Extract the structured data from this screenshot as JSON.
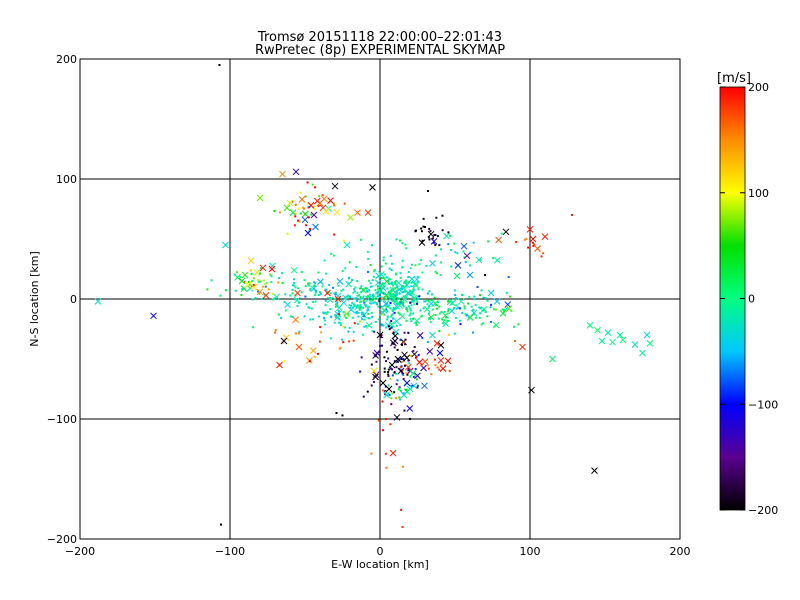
{
  "chart_data": {
    "type": "scatter",
    "title": "Tromsø 20151118 22:00:00–22:01:43",
    "subtitle": "RwPretec (8p) EXPERIMENTAL SKYMAP",
    "xlabel": "E-W location [km]",
    "ylabel": "N-S location [km]",
    "xlim": [
      -200,
      200
    ],
    "ylim": [
      -200,
      200
    ],
    "xticks": [
      -200,
      -100,
      0,
      100,
      200
    ],
    "yticks": [
      -200,
      -100,
      0,
      100,
      200
    ],
    "grid": true,
    "colorbar": {
      "label": "[m/s]",
      "range": [
        -200,
        200
      ],
      "ticks": [
        -200,
        -100,
        0,
        100,
        200
      ],
      "colormap": [
        "#000000",
        "#5a0090",
        "#0000ff",
        "#00c8ff",
        "#00ff80",
        "#00e000",
        "#ffff00",
        "#ff8c00",
        "#ff0000"
      ]
    },
    "marker_types": [
      "cross",
      "dot"
    ],
    "points": [
      {
        "x": -188,
        "y": -2,
        "v": -30,
        "m": "cross"
      },
      {
        "x": -151,
        "y": -14,
        "v": -100,
        "m": "cross"
      },
      {
        "x": -107,
        "y": 195,
        "v": -200,
        "m": "dot"
      },
      {
        "x": -106,
        "y": -188,
        "v": -200,
        "m": "dot"
      },
      {
        "x": -103,
        "y": 45,
        "v": -30,
        "m": "cross"
      },
      {
        "x": -95,
        "y": 18,
        "v": 20,
        "m": "cross"
      },
      {
        "x": -92,
        "y": 15,
        "v": 40,
        "m": "cross"
      },
      {
        "x": -90,
        "y": 20,
        "v": 60,
        "m": "cross"
      },
      {
        "x": -88,
        "y": 12,
        "v": 100,
        "m": "cross"
      },
      {
        "x": -86,
        "y": 32,
        "v": 120,
        "m": "cross"
      },
      {
        "x": -84,
        "y": 10,
        "v": 110,
        "m": "cross"
      },
      {
        "x": -82,
        "y": 22,
        "v": 90,
        "m": "cross"
      },
      {
        "x": -80,
        "y": 6,
        "v": 150,
        "m": "cross"
      },
      {
        "x": -78,
        "y": 26,
        "v": 190,
        "m": "cross"
      },
      {
        "x": -76,
        "y": 3,
        "v": 180,
        "m": "cross"
      },
      {
        "x": -72,
        "y": 25,
        "v": 200,
        "m": "cross"
      },
      {
        "x": -70,
        "y": -28,
        "v": 160,
        "m": "dot"
      },
      {
        "x": -67,
        "y": -55,
        "v": 190,
        "m": "cross"
      },
      {
        "x": -65,
        "y": 104,
        "v": 150,
        "m": "cross"
      },
      {
        "x": -64,
        "y": -35,
        "v": -190,
        "m": "cross"
      },
      {
        "x": -62,
        "y": 76,
        "v": 60,
        "m": "cross"
      },
      {
        "x": -60,
        "y": 80,
        "v": 90,
        "m": "cross"
      },
      {
        "x": -58,
        "y": 72,
        "v": 30,
        "m": "cross"
      },
      {
        "x": -56,
        "y": 106,
        "v": -120,
        "m": "cross"
      },
      {
        "x": -55,
        "y": 5,
        "v": 180,
        "m": "cross"
      },
      {
        "x": -54,
        "y": -40,
        "v": 170,
        "m": "cross"
      },
      {
        "x": -52,
        "y": 83,
        "v": 160,
        "m": "cross"
      },
      {
        "x": -50,
        "y": 66,
        "v": -80,
        "m": "cross"
      },
      {
        "x": -48,
        "y": 55,
        "v": -100,
        "m": "cross"
      },
      {
        "x": -46,
        "y": 78,
        "v": 200,
        "m": "cross"
      },
      {
        "x": -44,
        "y": 70,
        "v": -150,
        "m": "cross"
      },
      {
        "x": -43,
        "y": 60,
        "v": -70,
        "m": "cross"
      },
      {
        "x": -40,
        "y": 80,
        "v": 160,
        "m": "cross"
      },
      {
        "x": -38,
        "y": 76,
        "v": 190,
        "m": "cross"
      },
      {
        "x": -36,
        "y": 73,
        "v": 110,
        "m": "cross"
      },
      {
        "x": -35,
        "y": 5,
        "v": 190,
        "m": "cross"
      },
      {
        "x": -33,
        "y": 82,
        "v": 200,
        "m": "cross"
      },
      {
        "x": -30,
        "y": 94,
        "v": -190,
        "m": "cross"
      },
      {
        "x": -29,
        "y": -95,
        "v": -200,
        "m": "dot"
      },
      {
        "x": -28,
        "y": 0,
        "v": 190,
        "m": "cross"
      },
      {
        "x": -25,
        "y": -97,
        "v": -200,
        "m": "dot"
      },
      {
        "x": -22,
        "y": 45,
        "v": -20,
        "m": "cross"
      },
      {
        "x": -15,
        "y": 72,
        "v": 160,
        "m": "cross"
      },
      {
        "x": -8,
        "y": 72,
        "v": 180,
        "m": "cross"
      },
      {
        "x": -5,
        "y": 93,
        "v": -200,
        "m": "cross"
      },
      {
        "x": -4,
        "y": -60,
        "v": 120,
        "m": "cross"
      },
      {
        "x": -3,
        "y": -65,
        "v": -200,
        "m": "cross"
      },
      {
        "x": -2,
        "y": -45,
        "v": -130,
        "m": "cross"
      },
      {
        "x": 0,
        "y": -30,
        "v": -200,
        "m": "cross"
      },
      {
        "x": 2,
        "y": -70,
        "v": -200,
        "m": "cross"
      },
      {
        "x": 4,
        "y": -100,
        "v": 190,
        "m": "dot"
      },
      {
        "x": 6,
        "y": -75,
        "v": -200,
        "m": "cross"
      },
      {
        "x": 8,
        "y": -55,
        "v": -200,
        "m": "cross"
      },
      {
        "x": 10,
        "y": -35,
        "v": -190,
        "m": "cross"
      },
      {
        "x": 12,
        "y": -50,
        "v": -200,
        "m": "cross"
      },
      {
        "x": 14,
        "y": -60,
        "v": -180,
        "m": "cross"
      },
      {
        "x": 15,
        "y": -190,
        "v": 180,
        "m": "dot"
      },
      {
        "x": 16,
        "y": -80,
        "v": -30,
        "m": "cross"
      },
      {
        "x": 18,
        "y": -70,
        "v": -100,
        "m": "cross"
      },
      {
        "x": 20,
        "y": -75,
        "v": -20,
        "m": "cross"
      },
      {
        "x": 22,
        "y": -62,
        "v": 10,
        "m": "cross"
      },
      {
        "x": 24,
        "y": 57,
        "v": -200,
        "m": "dot"
      },
      {
        "x": 28,
        "y": 47,
        "v": -200,
        "m": "cross"
      },
      {
        "x": 30,
        "y": 60,
        "v": -200,
        "m": "dot"
      },
      {
        "x": 32,
        "y": 90,
        "v": -190,
        "m": "dot"
      },
      {
        "x": 34,
        "y": 54,
        "v": -200,
        "m": "cross"
      },
      {
        "x": 36,
        "y": 48,
        "v": -120,
        "m": "cross"
      },
      {
        "x": 38,
        "y": -37,
        "v": 190,
        "m": "cross"
      },
      {
        "x": 40,
        "y": -45,
        "v": -100,
        "m": "cross"
      },
      {
        "x": 42,
        "y": -58,
        "v": 200,
        "m": "cross"
      },
      {
        "x": 46,
        "y": -30,
        "v": 120,
        "m": "dot"
      },
      {
        "x": 52,
        "y": 28,
        "v": -90,
        "m": "cross"
      },
      {
        "x": 56,
        "y": 44,
        "v": -80,
        "m": "cross"
      },
      {
        "x": 58,
        "y": 36,
        "v": -150,
        "m": "cross"
      },
      {
        "x": 60,
        "y": 20,
        "v": -60,
        "m": "cross"
      },
      {
        "x": 62,
        "y": -28,
        "v": -60,
        "m": "dot"
      },
      {
        "x": 65,
        "y": 10,
        "v": -80,
        "m": "dot"
      },
      {
        "x": 70,
        "y": 20,
        "v": -200,
        "m": "dot"
      },
      {
        "x": 74,
        "y": 5,
        "v": -40,
        "m": "cross"
      },
      {
        "x": 78,
        "y": -2,
        "v": -50,
        "m": "cross"
      },
      {
        "x": 82,
        "y": -12,
        "v": 30,
        "m": "cross"
      },
      {
        "x": 84,
        "y": 56,
        "v": -200,
        "m": "cross"
      },
      {
        "x": 86,
        "y": -8,
        "v": 70,
        "m": "cross"
      },
      {
        "x": 90,
        "y": -35,
        "v": 160,
        "m": "dot"
      },
      {
        "x": 95,
        "y": -40,
        "v": 180,
        "m": "cross"
      },
      {
        "x": 100,
        "y": 58,
        "v": 190,
        "m": "cross"
      },
      {
        "x": 101,
        "y": -76,
        "v": -200,
        "m": "cross"
      },
      {
        "x": 102,
        "y": 50,
        "v": 200,
        "m": "cross"
      },
      {
        "x": 105,
        "y": 42,
        "v": 170,
        "m": "cross"
      },
      {
        "x": 110,
        "y": 52,
        "v": 190,
        "m": "cross"
      },
      {
        "x": 115,
        "y": -50,
        "v": 10,
        "m": "cross"
      },
      {
        "x": 128,
        "y": 70,
        "v": 190,
        "m": "dot"
      },
      {
        "x": 140,
        "y": -22,
        "v": 0,
        "m": "cross"
      },
      {
        "x": 143,
        "y": -143,
        "v": -200,
        "m": "cross"
      },
      {
        "x": 145,
        "y": -26,
        "v": 10,
        "m": "cross"
      },
      {
        "x": 148,
        "y": -35,
        "v": -10,
        "m": "cross"
      },
      {
        "x": 152,
        "y": -28,
        "v": -20,
        "m": "cross"
      },
      {
        "x": 155,
        "y": -36,
        "v": 0,
        "m": "cross"
      },
      {
        "x": 160,
        "y": -30,
        "v": -10,
        "m": "cross"
      },
      {
        "x": 162,
        "y": -34,
        "v": 10,
        "m": "cross"
      },
      {
        "x": 170,
        "y": -38,
        "v": -20,
        "m": "cross"
      },
      {
        "x": 175,
        "y": -45,
        "v": -10,
        "m": "cross"
      },
      {
        "x": 178,
        "y": -30,
        "v": -30,
        "m": "cross"
      },
      {
        "x": 180,
        "y": -37,
        "v": 0,
        "m": "cross"
      }
    ],
    "point_clusters": [
      {
        "cx": -10,
        "cy": -5,
        "sx": 22,
        "sy": 12,
        "n": 280,
        "v": -25,
        "vs": 18
      },
      {
        "cx": 8,
        "cy": 8,
        "sx": 12,
        "sy": 10,
        "n": 140,
        "v": -10,
        "vs": 25
      },
      {
        "cx": -50,
        "cy": 5,
        "sx": 28,
        "sy": 8,
        "n": 70,
        "v": -10,
        "vs": 25
      },
      {
        "cx": 35,
        "cy": -10,
        "sx": 20,
        "sy": 8,
        "n": 90,
        "v": 0,
        "vs": 30
      },
      {
        "cx": 70,
        "cy": -10,
        "sx": 14,
        "sy": 8,
        "n": 45,
        "v": -15,
        "vs": 35
      },
      {
        "cx": 30,
        "cy": 35,
        "sx": 28,
        "sy": 12,
        "n": 60,
        "v": -15,
        "vs": 30
      },
      {
        "cx": 10,
        "cy": -50,
        "sx": 9,
        "sy": 20,
        "n": 90,
        "v": -170,
        "vs": 40
      },
      {
        "cx": 15,
        "cy": -70,
        "sx": 9,
        "sy": 8,
        "n": 40,
        "v": -40,
        "vs": 60
      },
      {
        "cx": -50,
        "cy": 75,
        "sx": 14,
        "sy": 12,
        "n": 45,
        "v": 110,
        "vs": 80
      },
      {
        "cx": -85,
        "cy": 15,
        "sx": 10,
        "sy": 6,
        "n": 35,
        "v": 60,
        "vs": 70
      },
      {
        "cx": 32,
        "cy": -55,
        "sx": 12,
        "sy": 6,
        "n": 22,
        "v": 170,
        "vs": 30
      },
      {
        "cx": -40,
        "cy": -35,
        "sx": 18,
        "sy": 12,
        "n": 25,
        "v": 160,
        "vs": 40
      },
      {
        "cx": 35,
        "cy": 55,
        "sx": 6,
        "sy": 6,
        "n": 20,
        "v": -190,
        "vs": 10
      },
      {
        "cx": 100,
        "cy": 45,
        "sx": 8,
        "sy": 8,
        "n": 10,
        "v": 180,
        "vs": 20
      },
      {
        "cx": 5,
        "cy": -100,
        "sx": 8,
        "sy": 40,
        "n": 14,
        "v": 170,
        "vs": 30
      }
    ]
  }
}
